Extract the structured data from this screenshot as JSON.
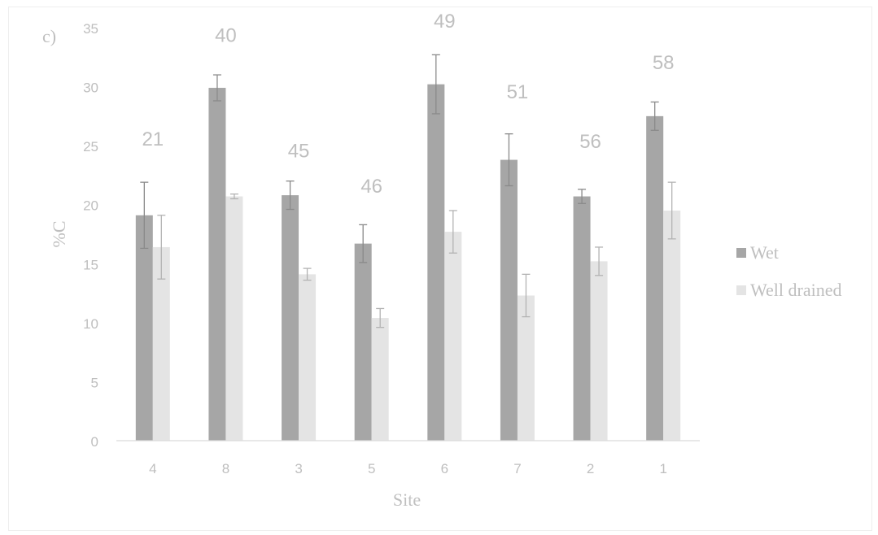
{
  "panel_label": "c)",
  "chart_data": {
    "type": "bar",
    "title": "",
    "xlabel": "Site",
    "ylabel": "%C",
    "ylim": [
      0,
      35
    ],
    "yticks": [
      "0",
      "5",
      "10",
      "15",
      "20",
      "25",
      "30",
      "35"
    ],
    "categories": [
      "4",
      "8",
      "3",
      "5",
      "6",
      "7",
      "2",
      "1"
    ],
    "series": [
      {
        "name": "Wet",
        "color": "#a6a6a6",
        "values": [
          19.1,
          29.9,
          20.8,
          16.7,
          30.2,
          23.8,
          20.7,
          27.5
        ],
        "errors": [
          2.8,
          1.1,
          1.2,
          1.6,
          2.5,
          2.2,
          0.6,
          1.2
        ]
      },
      {
        "name": "Well drained",
        "color": "#e4e4e4",
        "values": [
          16.4,
          20.7,
          14.1,
          10.4,
          17.7,
          12.3,
          15.2,
          19.5
        ],
        "errors": [
          2.7,
          0.2,
          0.5,
          0.8,
          1.8,
          1.8,
          1.2,
          2.4
        ]
      }
    ],
    "annotations": [
      "21",
      "40",
      "45",
      "46",
      "49",
      "51",
      "56",
      "58"
    ],
    "annotation_heights": [
      25,
      33.8,
      24,
      21,
      35,
      29,
      24.8,
      31.5
    ],
    "grid": false,
    "legend_position": "right"
  }
}
